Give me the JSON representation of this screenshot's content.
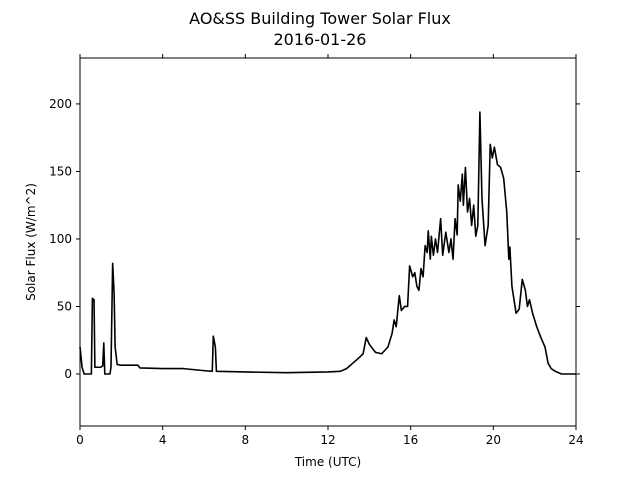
{
  "chart_data": {
    "type": "line",
    "title": "AO&SS Building Tower Solar Flux",
    "subtitle": "2016-01-26",
    "x_label": "Time (UTC)",
    "y_label": "Solar Flux (W/m^2)",
    "color": "#000000",
    "xlim": [
      0,
      24
    ],
    "xticks": [
      0,
      4,
      8,
      12,
      16,
      20,
      24
    ],
    "ylim": [
      -38.5,
      234
    ],
    "yticks": [
      0,
      50,
      100,
      150,
      200
    ],
    "x": [
      0,
      0.1,
      0.2,
      0.55,
      0.6,
      0.68,
      0.72,
      1.0,
      1.1,
      1.15,
      1.2,
      1.45,
      1.5,
      1.58,
      1.65,
      1.7,
      1.8,
      2.0,
      2.8,
      2.9,
      4.0,
      5.0,
      6.0,
      6.4,
      6.45,
      6.55,
      6.6,
      8,
      10,
      12,
      12.6,
      12.9,
      13.2,
      13.5,
      13.7,
      13.85,
      14.0,
      14.3,
      14.6,
      14.9,
      15.1,
      15.2,
      15.3,
      15.45,
      15.55,
      15.7,
      15.85,
      15.95,
      16.1,
      16.2,
      16.3,
      16.4,
      16.5,
      16.6,
      16.7,
      16.8,
      16.85,
      16.95,
      17.0,
      17.1,
      17.2,
      17.3,
      17.45,
      17.55,
      17.7,
      17.85,
      17.95,
      18.05,
      18.15,
      18.25,
      18.3,
      18.4,
      18.5,
      18.55,
      18.65,
      18.75,
      18.85,
      18.95,
      19.05,
      19.15,
      19.25,
      19.35,
      19.45,
      19.6,
      19.75,
      19.85,
      19.95,
      20.05,
      20.2,
      20.35,
      20.5,
      20.65,
      20.75,
      20.8,
      20.9,
      21.0,
      21.1,
      21.25,
      21.4,
      21.55,
      21.65,
      21.75,
      21.9,
      22.1,
      22.3,
      22.5,
      22.65,
      22.8,
      23.0,
      23.3,
      24
    ],
    "values": [
      20,
      5,
      0,
      0,
      56,
      55,
      5,
      5,
      6,
      23,
      0,
      0,
      5,
      82,
      60,
      20,
      7,
      6.5,
      6.5,
      4.5,
      4,
      4,
      2.5,
      2,
      28,
      20,
      2,
      1.5,
      1,
      1.5,
      2,
      4,
      8,
      12,
      15,
      27,
      22,
      16,
      15,
      20,
      30,
      40,
      35,
      58,
      47,
      50,
      50,
      80,
      72,
      75,
      65,
      62,
      78,
      72,
      95,
      90,
      106,
      85,
      102,
      88,
      100,
      90,
      115,
      88,
      105,
      90,
      100,
      85,
      115,
      103,
      140,
      128,
      148,
      125,
      153,
      120,
      130,
      110,
      125,
      102,
      110,
      194,
      130,
      95,
      110,
      170,
      160,
      168,
      155,
      153,
      145,
      120,
      85,
      94,
      65,
      55,
      45,
      48,
      70,
      62,
      50,
      55,
      45,
      35,
      27,
      20,
      8,
      4,
      2,
      0,
      0
    ]
  }
}
